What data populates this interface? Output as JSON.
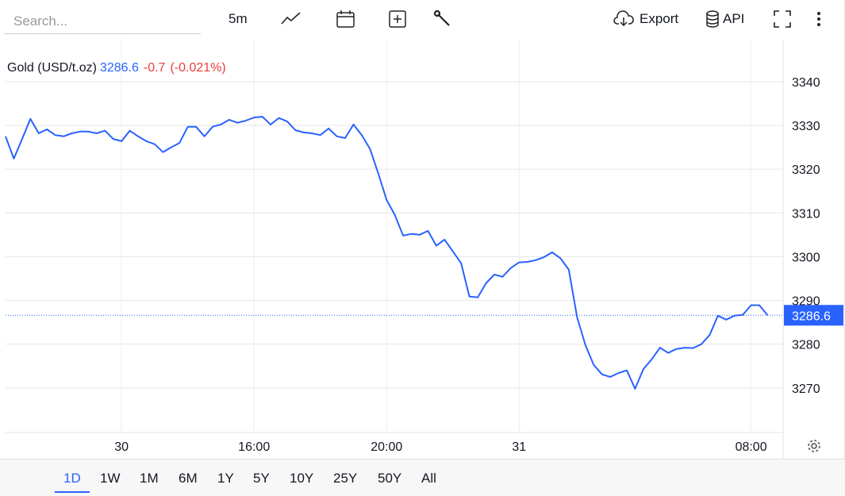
{
  "toolbar": {
    "search_placeholder": "Search...",
    "interval": "5m",
    "export": "Export",
    "api": "API"
  },
  "legend": {
    "symbol": "Gold (USD/t.oz)",
    "change": "-0.7",
    "change_percent": "(-0.021%)"
  },
  "ranges": [
    "1D",
    "1W",
    "1M",
    "6M",
    "1Y",
    "5Y",
    "10Y",
    "25Y",
    "50Y",
    "All"
  ],
  "active_range": "1D",
  "chart_data": {
    "type": "line",
    "color": "#2962ff",
    "categories": [
      null,
      null,
      null,
      null,
      null,
      null,
      null,
      null,
      null,
      null,
      null,
      null,
      null,
      null,
      "30",
      null,
      null,
      null,
      null,
      null,
      null,
      null,
      null,
      null,
      null,
      null,
      null,
      null,
      null,
      null,
      "16:00",
      null,
      null,
      null,
      null,
      null,
      null,
      null,
      null,
      null,
      null,
      null,
      null,
      null,
      null,
      null,
      "20:00",
      null,
      null,
      null,
      null,
      null,
      null,
      null,
      null,
      null,
      null,
      null,
      null,
      null,
      null,
      null,
      "31",
      null,
      null,
      null,
      null,
      null,
      null,
      null,
      null,
      null,
      null,
      null,
      null,
      null,
      null,
      null,
      null,
      null,
      null,
      null,
      null,
      null,
      null,
      null,
      null,
      null,
      null,
      null,
      "08:00",
      null,
      null
    ],
    "values": [
      3327.5,
      3322.4,
      3326.9,
      3331.5,
      3328.2,
      3329.1,
      3327.8,
      3327.5,
      3328.2,
      3328.6,
      3328.6,
      3328.2,
      3328.8,
      3326.9,
      3326.4,
      3328.8,
      3327.5,
      3326.4,
      3325.7,
      3323.9,
      3325,
      3326,
      3329.7,
      3329.7,
      3327.5,
      3329.7,
      3330.2,
      3331.3,
      3330.6,
      3331.1,
      3331.8,
      3332,
      3330.2,
      3331.7,
      3330.9,
      3328.9,
      3328.4,
      3328.2,
      3327.8,
      3329.3,
      3327.5,
      3327.1,
      3330.2,
      3327.8,
      3324.6,
      3319,
      3313,
      3309.5,
      3304.8,
      3305.2,
      3305,
      3305.9,
      3302.5,
      3303.9,
      3301.2,
      3298.5,
      3290.9,
      3290.7,
      3293.9,
      3295.9,
      3295.4,
      3297.4,
      3298.7,
      3298.8,
      3299.2,
      3299.9,
      3301,
      3299.6,
      3297,
      3286.1,
      3279.8,
      3275.3,
      3273.1,
      3272.5,
      3273.4,
      3274,
      3269.8,
      3274.3,
      3276.5,
      3279.2,
      3278,
      3278.9,
      3279.2,
      3279.1,
      3280,
      3282.1,
      3286.5,
      3285.6,
      3286.5,
      3286.7,
      3288.9,
      3288.9,
      3286.6
    ],
    "last_value": 3286.6,
    "ylim": [
      3259.8,
      3349.6
    ],
    "yticks": [
      3270,
      3280,
      3290,
      3300,
      3310,
      3320,
      3330,
      3340
    ],
    "grid": true
  }
}
